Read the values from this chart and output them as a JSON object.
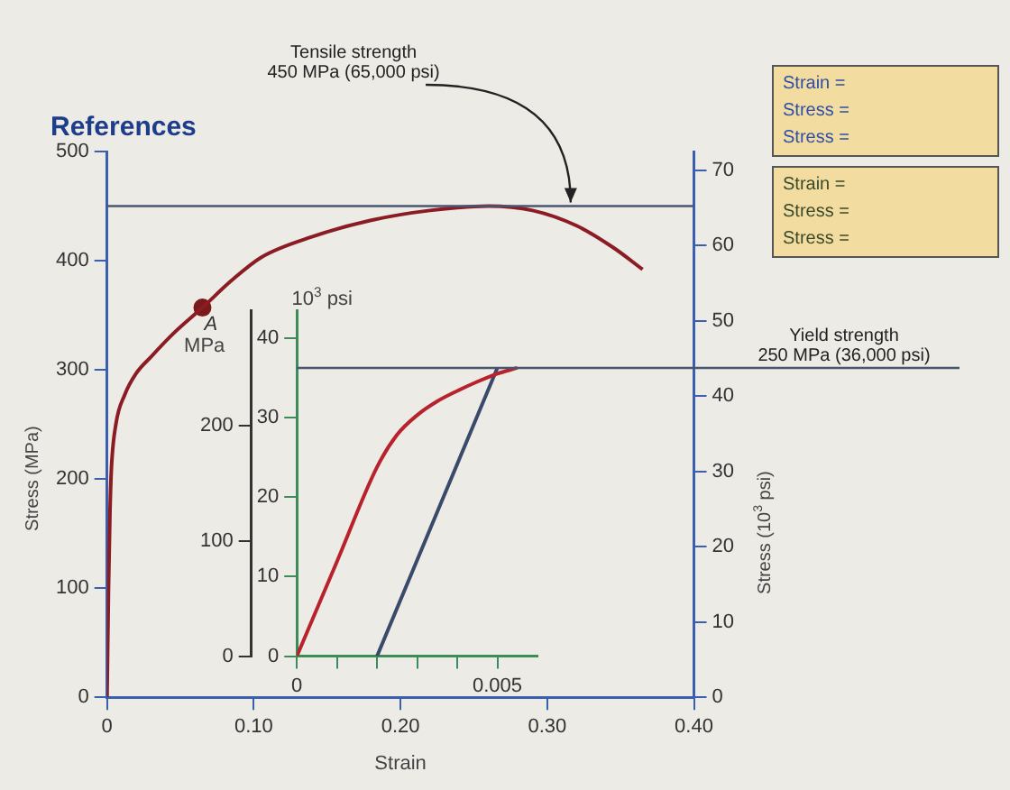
{
  "chart_data": [
    {
      "type": "line",
      "title": "References",
      "xlabel": "Strain",
      "ylabel": "Stress (MPa)",
      "y2label": "Stress (10$^{3}$ psi)",
      "xlim": [
        0,
        0.4
      ],
      "xticks": [
        {
          "value": 0,
          "label": "0"
        },
        {
          "value": 0.1,
          "label": "0.10"
        },
        {
          "value": 0.2,
          "label": "0.20"
        },
        {
          "value": 0.3,
          "label": "0.30"
        },
        {
          "value": 0.4,
          "label": "0.40"
        }
      ],
      "ylim": [
        0,
        500
      ],
      "yticks": [
        0,
        100,
        200,
        300,
        400,
        500
      ],
      "y2lim": [
        0,
        72.5
      ],
      "y2ticks": [
        0,
        10,
        20,
        30,
        40,
        50,
        60,
        70
      ],
      "ref_lines": [
        {
          "axis": "y",
          "value": 450,
          "label": "Tensile strength\n450 MPa (65,000 psi)"
        }
      ],
      "series": [
        {
          "color": "#8b1c24",
          "x": [
            0,
            0.001,
            0.002,
            0.003,
            0.006,
            0.012,
            0.02,
            0.03,
            0.045,
            0.065,
            0.085,
            0.105,
            0.14,
            0.18,
            0.22,
            0.26,
            0.29,
            0.32,
            0.345,
            0.365
          ],
          "values": [
            0,
            100,
            170,
            210,
            250,
            277,
            297,
            312,
            333,
            357,
            382,
            403,
            422,
            437,
            446,
            450,
            446,
            432,
            412,
            392
          ]
        },
        {
          "type": "scatter",
          "name": "A",
          "color": "#7a1a1a",
          "x": [
            0.065
          ],
          "values": [
            357
          ]
        }
      ]
    },
    {
      "type": "line",
      "ylabel": "MPa",
      "y2label": "10$^{3}$ psi",
      "xlim": [
        0,
        0.006
      ],
      "xticks": [
        {
          "value": 0,
          "label": "0"
        },
        {
          "value": 0.001,
          "label": null
        },
        {
          "value": 0.002,
          "label": null
        },
        {
          "value": 0.003,
          "label": null
        },
        {
          "value": 0.004,
          "label": null
        },
        {
          "value": 0.005,
          "label": "0.005"
        }
      ],
      "ylim": [
        0,
        300
      ],
      "yticks": [
        0,
        100,
        200
      ],
      "y2lim": [
        0,
        43.5
      ],
      "y2ticks": [
        0,
        10,
        20,
        30,
        40
      ],
      "ref_lines": [
        {
          "axis": "y",
          "value": 250,
          "label": "Yield strength\n250 MPa (36,000 psi)"
        }
      ],
      "series": [
        {
          "color": "#b8222c",
          "x": [
            0,
            0.001,
            0.002,
            0.0025,
            0.003,
            0.0035,
            0.004,
            0.0045,
            0.005,
            0.0055
          ],
          "values": [
            0,
            82,
            164,
            192,
            209,
            221,
            230,
            238,
            245,
            250
          ]
        },
        {
          "color": "#3a4a6a",
          "x": [
            0.002,
            0.005
          ],
          "values": [
            0,
            250
          ]
        }
      ]
    },
    {
      "type": "other",
      "annotations": [
        "Strain =",
        "Stress =",
        "Stress ="
      ]
    },
    {
      "type": "other",
      "annotations": [
        "Strain =",
        "Stress =",
        "Stress ="
      ]
    }
  ]
}
